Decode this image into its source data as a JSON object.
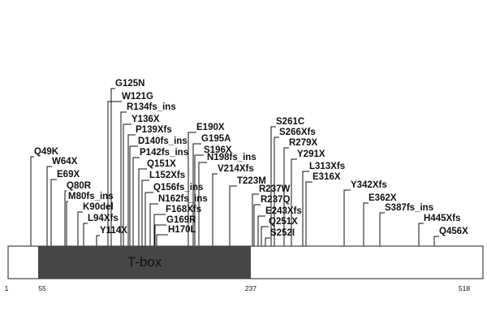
{
  "protein": {
    "length_aa": 518,
    "domain": {
      "label": "T-box",
      "start": 55,
      "end": 237,
      "color": "#464646"
    },
    "positions": [
      "1",
      "55",
      "237",
      "518"
    ]
  },
  "mutations": [
    "Q49K",
    "W64X",
    "E69X",
    "Q80R",
    "M80fs_ins",
    "K90del",
    "L94Xfs",
    "Y114X",
    "G125N",
    "W121G",
    "R134fs_ins",
    "Y136X",
    "P139Xfs",
    "D140fs_ins",
    "P142fs_ins",
    "Q151X",
    "L152Xfs",
    "Q156fs_ins",
    "N162fs_ins",
    "F168Xfs",
    "G169R",
    "H170L",
    "E190X",
    "G195A",
    "S196X",
    "N198fs_ins",
    "V214Xfs",
    "T223M",
    "R237W",
    "R237Q",
    "E243Xfs",
    "Q251X",
    "S252I",
    "S261C",
    "S266Xfs",
    "R279X",
    "Y291X",
    "L313Xfs",
    "E316X",
    "Y342Xfs",
    "E362X",
    "S387fs_ins",
    "H445Xfs",
    "Q456X"
  ],
  "colors": {
    "domain": "#464646",
    "line": "#111111",
    "bar_border": "#444444"
  }
}
